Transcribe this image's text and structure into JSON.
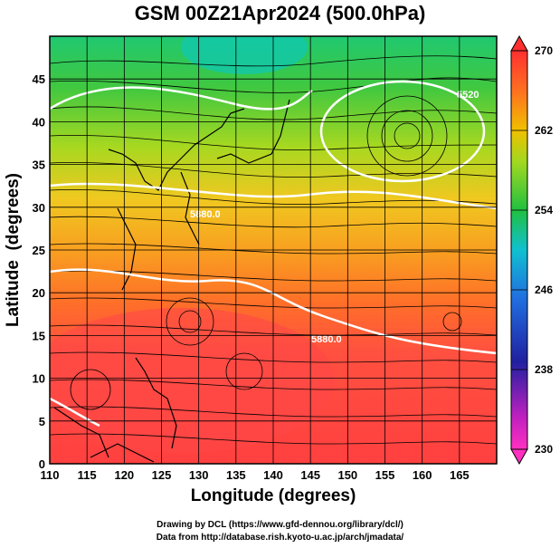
{
  "title": "GSM 00Z21Apr2024 (500.0hPa)",
  "footer": {
    "line1": "Drawing by DCL (https://www.gfd-dennou.org/library/dcl/)",
    "line2": "Data from http://database.rish.kyoto-u.ac.jp/arch/jmadata/"
  },
  "chart_data": {
    "type": "heatmap",
    "xlabel": "Longitude (degrees)",
    "ylabel": "Latitude  (degrees)",
    "xlim": [
      110,
      170
    ],
    "ylim": [
      0,
      50
    ],
    "xticks": [
      110,
      115,
      120,
      125,
      130,
      135,
      140,
      145,
      150,
      155,
      160,
      165
    ],
    "yticks": [
      0,
      5,
      10,
      15,
      20,
      25,
      30,
      35,
      40,
      45
    ],
    "colorbar": {
      "ticks": [
        230,
        238,
        246,
        254,
        262,
        270
      ],
      "colors": [
        "#d020c0",
        "#2020b0",
        "#10a0f0",
        "#20c040",
        "#f0b000",
        "#ff3030"
      ]
    },
    "contour_labels": [
      "5880.0",
      "5880.0",
      "5520"
    ],
    "grid": true
  }
}
